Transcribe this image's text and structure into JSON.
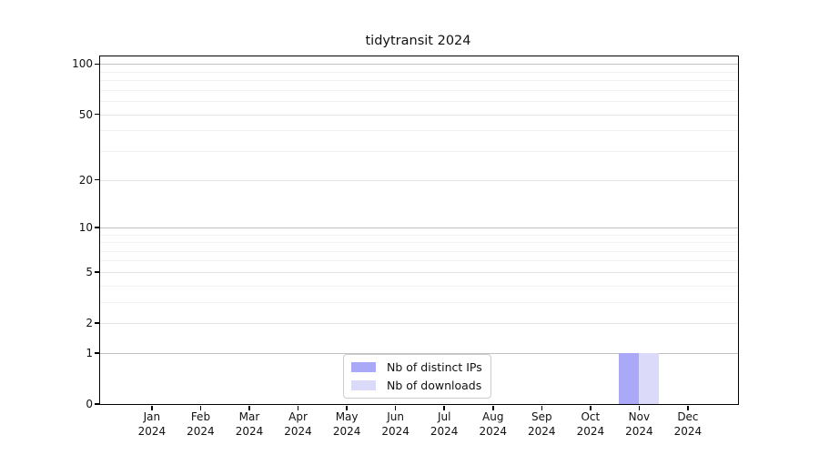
{
  "title": "tidytransit 2024",
  "colors": {
    "distinct_ips_bar": "#a9a9f8",
    "downloads_bar": "#dbdbf9",
    "grid_major": "#c2c2c2",
    "grid_mid": "#e4e4e4",
    "grid_minor": "#f2f2f2",
    "axis": "#000000",
    "legend_border": "#cccccc"
  },
  "legend": {
    "position": "lower center",
    "items": [
      {
        "label": "Nb of distinct IPs",
        "color": "#a9a9f8"
      },
      {
        "label": "Nb of downloads",
        "color": "#dbdbf9"
      }
    ]
  },
  "chart_data": {
    "type": "bar",
    "title": "tidytransit 2024",
    "xlabel": "",
    "ylabel": "",
    "categories": [
      "Jan 2024",
      "Feb 2024",
      "Mar 2024",
      "Apr 2024",
      "May 2024",
      "Jun 2024",
      "Jul 2024",
      "Aug 2024",
      "Sep 2024",
      "Oct 2024",
      "Nov 2024",
      "Dec 2024"
    ],
    "series": [
      {
        "name": "Nb of distinct IPs",
        "color": "#a9a9f8",
        "values": [
          0,
          0,
          0,
          0,
          0,
          0,
          0,
          0,
          0,
          0,
          1,
          0
        ]
      },
      {
        "name": "Nb of downloads",
        "color": "#dbdbf9",
        "values": [
          0,
          0,
          0,
          0,
          0,
          0,
          0,
          0,
          0,
          0,
          1,
          0
        ]
      }
    ],
    "y_scale": "log10(1+x)",
    "ylim": [
      0,
      111
    ],
    "y_ticks": [
      0,
      1,
      2,
      5,
      10,
      20,
      50,
      100
    ],
    "y_tick_labels": [
      "0",
      "1",
      "2",
      "5",
      "10",
      "20",
      "50",
      "100"
    ],
    "y_major_gridlines": [
      1,
      10,
      100
    ],
    "y_mid_gridlines": [
      2,
      5,
      20,
      50
    ],
    "y_minor_gridlines": [
      3,
      4,
      6,
      7,
      8,
      9,
      30,
      40,
      60,
      70,
      80,
      90
    ],
    "grid": "horizontal only",
    "legend_position": "lower center"
  }
}
